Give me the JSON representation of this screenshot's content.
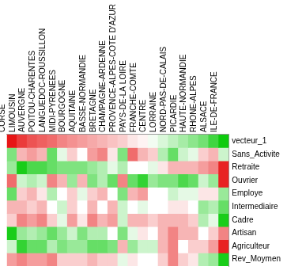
{
  "chart_data": {
    "type": "heatmap",
    "columns": [
      "CORSE",
      "LIMOUSIN",
      "AUVERGNE",
      "POITOU-CHARENTES",
      "LANGUEDOC-ROUSSILLON",
      "MIDI-PYRENEES",
      "BOURGOGNE",
      "AQUITAINE",
      "BASSE-NORMANDIE",
      "BRETAGNE",
      "CHAMPAGNE-ARDENNE",
      "PROVENCE-ALPES-COTE D'AZUR",
      "PAYS-DE-LA LOIRE",
      "FRANCHE-COMTE",
      "CENTRE",
      "LORRAINE",
      "NORD-PAS-DE-CALAIS",
      "PICARDIE",
      "HAUTE-NORMANDIE",
      "RHONE-ALPES",
      "ALSACE",
      "ILE-DE-FRANCE"
    ],
    "rows": [
      "vecteur_1",
      "Sans_Activite",
      "Retraite",
      "Ouvrier",
      "Employe",
      "Intermediaire",
      "Cadre",
      "Artisan",
      "Agriculteur",
      "Rev_Moymen"
    ],
    "cells": [
      [
        -0.95,
        -0.8,
        -0.7,
        -0.65,
        -0.6,
        -0.5,
        -0.45,
        -0.4,
        -0.35,
        -0.3,
        -0.25,
        -0.2,
        -0.1,
        -0.05,
        0.05,
        0.15,
        0.25,
        0.35,
        0.45,
        0.55,
        0.75,
        0.95
      ],
      [
        0.5,
        -0.3,
        -0.4,
        -0.3,
        0.6,
        0.1,
        -0.2,
        0,
        -0.4,
        -0.5,
        -0.1,
        0.5,
        -0.6,
        -0.3,
        -0.2,
        0.3,
        0.6,
        0.2,
        0.1,
        -0.2,
        -0.3,
        0.2
      ],
      [
        0.4,
        0.9,
        0.7,
        0.7,
        0.6,
        0.5,
        0.5,
        0.5,
        0.4,
        0.3,
        0.1,
        0.3,
        0,
        0,
        0.1,
        -0.1,
        -0.3,
        -0.3,
        -0.3,
        -0.4,
        -0.5,
        -0.9
      ],
      [
        -0.6,
        0.2,
        0.3,
        0.2,
        -0.5,
        -0.3,
        0.4,
        -0.3,
        0.5,
        0.3,
        0.6,
        -0.5,
        0.6,
        0.8,
        0.4,
        0.5,
        0.5,
        0.7,
        0.6,
        0.2,
        0.4,
        -0.9
      ],
      [
        0.6,
        -0.2,
        -0.3,
        -0.1,
        0.3,
        0,
        -0.2,
        0.1,
        -0.2,
        -0.3,
        0,
        0.5,
        -0.3,
        -0.4,
        0,
        0,
        0.2,
        0.1,
        0.1,
        -0.1,
        -0.1,
        0.4
      ],
      [
        -0.3,
        -0.3,
        -0.2,
        -0.3,
        0,
        0.2,
        -0.2,
        0,
        -0.3,
        0,
        -0.3,
        0.2,
        0,
        0.1,
        0,
        0,
        -0.1,
        -0.1,
        0,
        0.4,
        0.3,
        0.6
      ],
      [
        -0.2,
        -0.5,
        -0.4,
        -0.5,
        -0.2,
        0.1,
        -0.4,
        -0.1,
        -0.5,
        -0.3,
        -0.4,
        0.2,
        -0.3,
        -0.3,
        -0.2,
        -0.3,
        -0.3,
        -0.3,
        -0.2,
        0.3,
        0.1,
        0.9
      ],
      [
        0.9,
        0.4,
        0.3,
        0.4,
        0.6,
        0.4,
        0.2,
        0.5,
        0.3,
        0.3,
        0,
        0.5,
        0.1,
        -0.1,
        0,
        -0.3,
        -0.5,
        -0.3,
        -0.3,
        0,
        -0.2,
        -0.5
      ],
      [
        0.2,
        0.8,
        0.6,
        0.6,
        0.3,
        0.5,
        0.4,
        0.4,
        0.6,
        0.6,
        0.5,
        -0.3,
        0.4,
        0.2,
        0.2,
        -0.3,
        -0.5,
        0,
        -0.2,
        -0.2,
        -0.4,
        -0.9
      ],
      [
        -0.4,
        -0.5,
        -0.4,
        -0.4,
        -0.5,
        -0.2,
        -0.2,
        -0.2,
        -0.3,
        -0.2,
        -0.2,
        0.1,
        -0.1,
        0,
        0,
        -0.2,
        -0.5,
        -0.2,
        -0.1,
        0.3,
        0.4,
        0.9
      ]
    ],
    "zlim": [
      -1,
      1
    ],
    "grid": false,
    "tick_labels": true
  }
}
